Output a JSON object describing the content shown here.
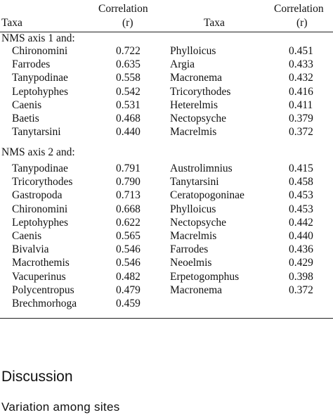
{
  "table": {
    "headers": {
      "taxa1": "Taxa",
      "corr1_line1": "Correlation",
      "corr1_line2": "(r)",
      "taxa2": "Taxa",
      "corr2_line1": "Correlation",
      "corr2_line2": "(r)"
    },
    "sections": [
      {
        "label": "NMS axis 1 and:",
        "rows": [
          {
            "taxa1": "Chironomini",
            "r1": "0.722",
            "taxa2": "Phylloicus",
            "r2": "0.451"
          },
          {
            "taxa1": "Farrodes",
            "r1": "0.635",
            "taxa2": "Argia",
            "r2": "0.433"
          },
          {
            "taxa1": "Tanypodinae",
            "r1": "0.558",
            "taxa2": "Macronema",
            "r2": "0.432"
          },
          {
            "taxa1": "Leptohyphes",
            "r1": "0.542",
            "taxa2": "Tricorythodes",
            "r2": "0.416"
          },
          {
            "taxa1": "Caenis",
            "r1": "0.531",
            "taxa2": "Heterelmis",
            "r2": "0.411"
          },
          {
            "taxa1": "Baetis",
            "r1": "0.468",
            "taxa2": "Nectopsyche",
            "r2": "0.379"
          },
          {
            "taxa1": "Tanytarsini",
            "r1": "0.440",
            "taxa2": "Macrelmis",
            "r2": "0.372"
          }
        ]
      },
      {
        "label": "NMS axis 2 and:",
        "rows": [
          {
            "taxa1": "Tanypodinae",
            "r1": "0.791",
            "taxa2": "Austrolimnius",
            "r2": "0.415"
          },
          {
            "taxa1": "Tricorythodes",
            "r1": "0.790",
            "taxa2": "Tanytarsini",
            "r2": "0.458"
          },
          {
            "taxa1": "Gastropoda",
            "r1": "0.713",
            "taxa2": "Ceratopogoninae",
            "r2": "0.453"
          },
          {
            "taxa1": "Chironomini",
            "r1": "0.668",
            "taxa2": "Phylloicus",
            "r2": "0.453"
          },
          {
            "taxa1": "Leptohyphes",
            "r1": "0.622",
            "taxa2": "Nectopsyche",
            "r2": "0.442"
          },
          {
            "taxa1": "Caenis",
            "r1": "0.565",
            "taxa2": "Macrelmis",
            "r2": "0.440"
          },
          {
            "taxa1": "Bivalvia",
            "r1": "0.546",
            "taxa2": "Farrodes",
            "r2": "0.436"
          },
          {
            "taxa1": "Macrothemis",
            "r1": "0.546",
            "taxa2": "Neoelmis",
            "r2": "0.429"
          },
          {
            "taxa1": "Vacuperinus",
            "r1": "0.482",
            "taxa2": "Erpetogomphus",
            "r2": "0.398"
          },
          {
            "taxa1": "Polycentropus",
            "r1": "0.479",
            "taxa2": "Macronema",
            "r2": "0.372"
          },
          {
            "taxa1": "Brechmorhoga",
            "r1": "0.459",
            "taxa2": "",
            "r2": ""
          }
        ]
      }
    ]
  },
  "discussion": {
    "heading": "Discussion",
    "subheading": "Variation among sites"
  }
}
